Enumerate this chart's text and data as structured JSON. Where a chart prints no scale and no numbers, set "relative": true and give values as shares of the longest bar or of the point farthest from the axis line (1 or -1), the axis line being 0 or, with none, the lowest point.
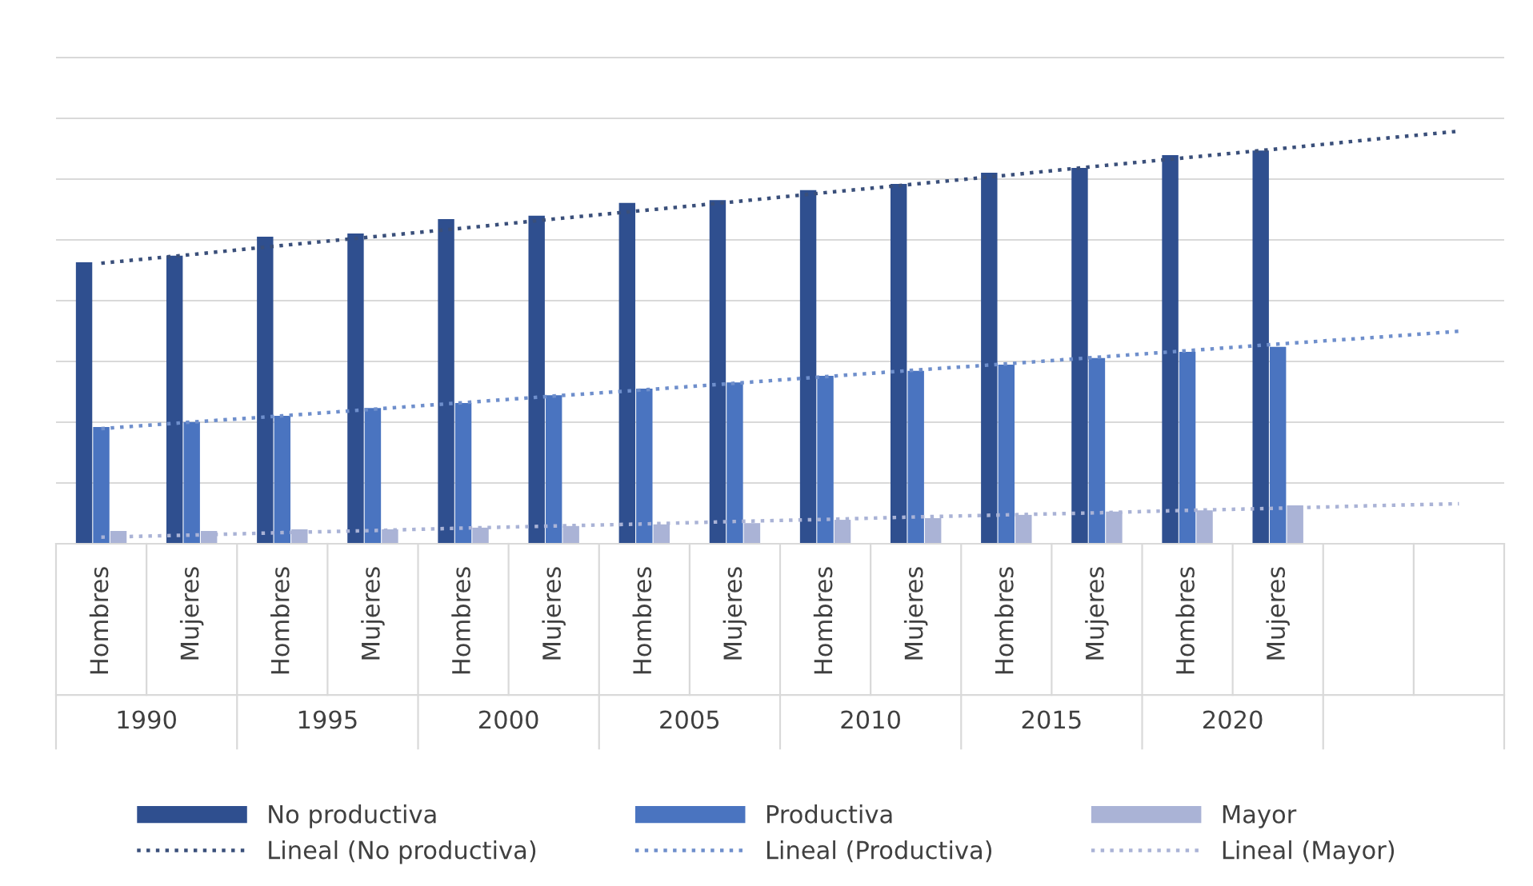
{
  "chart_data": {
    "type": "bar",
    "relative": true,
    "grid": "y",
    "legend": "bottom",
    "categories": [
      "Hombres",
      "Mujeres",
      "Hombres",
      "Mujeres",
      "Hombres",
      "Mujeres",
      "Hombres",
      "Mujeres",
      "Hombres",
      "Mujeres",
      "Hombres",
      "Mujeres",
      "Hombres",
      "Mujeres",
      null,
      null
    ],
    "annotations": [
      "1990",
      "1995",
      "2000",
      "2005",
      "2010",
      "2015",
      "2020"
    ],
    "series": [
      {
        "name": "No productiva",
        "color": "#2f4f8f",
        "values": [
          0.682,
          0.698,
          0.744,
          0.752,
          0.787,
          0.795,
          0.826,
          0.833,
          0.857,
          0.872,
          0.899,
          0.911,
          0.942,
          0.953,
          null,
          null
        ]
      },
      {
        "name": "Productiva",
        "color": "#4a74c0",
        "values": [
          0.283,
          0.295,
          0.31,
          0.329,
          0.341,
          0.36,
          0.376,
          0.391,
          0.407,
          0.419,
          0.434,
          0.45,
          0.465,
          0.477,
          null,
          null
        ]
      },
      {
        "name": "Mayor",
        "color": "#aab3d6",
        "values": [
          0.031,
          0.031,
          0.035,
          0.035,
          0.039,
          0.043,
          0.047,
          0.05,
          0.058,
          0.062,
          0.07,
          0.078,
          0.081,
          0.093,
          null,
          null
        ]
      },
      {
        "name": "Lineal (No productiva)",
        "type": "line",
        "line_style": "dotted",
        "color": "#3a4f7a",
        "values": [
          0.68,
          0.701,
          0.723,
          0.744,
          0.765,
          0.787,
          0.808,
          0.829,
          0.851,
          0.872,
          0.893,
          0.915,
          0.936,
          0.957,
          0.979,
          1.0
        ]
      },
      {
        "name": "Lineal (Productiva)",
        "type": "line",
        "line_style": "dotted",
        "color": "#6f8fcc",
        "values": [
          0.279,
          0.295,
          0.31,
          0.326,
          0.342,
          0.358,
          0.373,
          0.389,
          0.405,
          0.421,
          0.436,
          0.452,
          0.468,
          0.484,
          0.499,
          0.515
        ]
      },
      {
        "name": "Lineal (Mayor)",
        "type": "line",
        "line_style": "dotted",
        "color": "#aab3d6",
        "values": [
          0.016,
          0.021,
          0.027,
          0.032,
          0.038,
          0.043,
          0.048,
          0.054,
          0.059,
          0.065,
          0.07,
          0.075,
          0.081,
          0.086,
          0.092,
          0.097
        ]
      }
    ]
  }
}
